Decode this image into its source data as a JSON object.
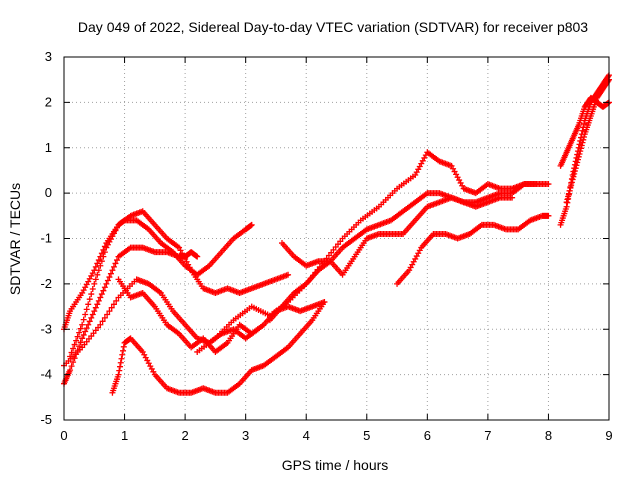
{
  "chart_data": {
    "type": "scatter",
    "title": "Day 049 of 2022, Sidereal Day-to-day VTEC variation (SDTVAR) for receiver p803",
    "xlabel": "GPS time / hours",
    "ylabel": "SDTVAR / TECUs",
    "xlim": [
      0,
      9
    ],
    "ylim": [
      -5,
      3
    ],
    "xticks": [
      "0",
      "1",
      "2",
      "3",
      "4",
      "5",
      "6",
      "7",
      "8",
      "9"
    ],
    "yticks": [
      "-5",
      "-4",
      "-3",
      "-2",
      "-1",
      "0",
      "1",
      "2",
      "3"
    ],
    "grid": true,
    "marker": "+",
    "color": "#ff0000",
    "series": [
      {
        "x": [
          0.0,
          0.3,
          0.6,
          0.9,
          1.2,
          1.4,
          1.6,
          1.8,
          2.0,
          2.2,
          2.4,
          2.6,
          2.8,
          3.0,
          3.2
        ],
        "y": [
          -3.8,
          -3.4,
          -2.9,
          -2.3,
          -1.9,
          -2.0,
          -2.2,
          -2.6,
          -2.9,
          -3.2,
          -3.3,
          -3.1,
          -3.0,
          -3.2,
          -3.0
        ]
      },
      {
        "x": [
          0.0,
          0.1,
          0.3,
          0.5,
          0.7,
          0.9,
          1.1,
          1.3,
          1.5,
          1.7,
          1.9,
          2.0,
          2.1,
          2.2
        ],
        "y": [
          -4.2,
          -3.9,
          -3.2,
          -2.6,
          -2.0,
          -1.4,
          -1.2,
          -1.2,
          -1.3,
          -1.3,
          -1.4,
          -1.4,
          -1.3,
          -1.4
        ]
      },
      {
        "x": [
          0.0,
          0.1,
          0.3,
          0.5,
          0.7,
          0.9,
          1.0,
          1.2,
          1.4,
          1.6,
          1.8,
          2.0,
          2.2,
          2.4,
          2.6,
          2.8,
          3.0,
          3.1
        ],
        "y": [
          -3.0,
          -2.6,
          -2.2,
          -1.7,
          -1.1,
          -0.7,
          -0.6,
          -0.6,
          -0.8,
          -1.1,
          -1.3,
          -1.6,
          -1.8,
          -1.6,
          -1.3,
          -1.0,
          -0.8,
          -0.7
        ]
      },
      {
        "x": [
          0.1,
          0.3,
          0.5,
          0.7,
          0.9,
          1.1,
          1.3,
          1.5,
          1.7,
          1.9,
          2.1,
          2.3,
          2.5,
          2.7,
          2.9,
          3.1,
          3.3,
          3.5,
          3.7
        ],
        "y": [
          -3.6,
          -2.9,
          -2.0,
          -1.2,
          -0.7,
          -0.5,
          -0.4,
          -0.7,
          -1.0,
          -1.2,
          -1.7,
          -2.1,
          -2.2,
          -2.1,
          -2.2,
          -2.1,
          -2.0,
          -1.9,
          -1.8
        ]
      },
      {
        "x": [
          0.8,
          0.9,
          1.0,
          1.1,
          1.3,
          1.5,
          1.7,
          1.9,
          2.1,
          2.3,
          2.5,
          2.7,
          2.9,
          3.1,
          3.3,
          3.5,
          3.7,
          3.9,
          4.1,
          4.3
        ],
        "y": [
          -4.4,
          -4.0,
          -3.3,
          -3.2,
          -3.5,
          -4.0,
          -4.3,
          -4.4,
          -4.4,
          -4.3,
          -4.4,
          -4.4,
          -4.2,
          -3.9,
          -3.8,
          -3.6,
          -3.4,
          -3.1,
          -2.8,
          -2.4
        ]
      },
      {
        "x": [
          0.9,
          1.1,
          1.3,
          1.5,
          1.7,
          1.9,
          2.1,
          2.3,
          2.5,
          2.7,
          2.9,
          3.1,
          3.3,
          3.5,
          3.7,
          3.9,
          4.1,
          4.3
        ],
        "y": [
          -1.9,
          -2.3,
          -2.2,
          -2.5,
          -2.9,
          -3.1,
          -3.4,
          -3.2,
          -3.5,
          -3.3,
          -2.9,
          -3.1,
          -2.9,
          -2.6,
          -2.5,
          -2.6,
          -2.5,
          -2.4
        ]
      },
      {
        "x": [
          2.2,
          2.5,
          2.8,
          3.1,
          3.4,
          3.7,
          4.0,
          4.3,
          4.6,
          4.9,
          5.2,
          5.5,
          5.8,
          6.0,
          6.2,
          6.4,
          6.6,
          6.8,
          7.0,
          7.2,
          7.4,
          7.6,
          7.8,
          8.0
        ],
        "y": [
          -3.5,
          -3.2,
          -2.8,
          -2.5,
          -2.7,
          -2.4,
          -2.0,
          -1.5,
          -1.0,
          -0.6,
          -0.3,
          0.1,
          0.4,
          0.9,
          0.7,
          0.6,
          0.1,
          0.0,
          0.2,
          0.1,
          0.1,
          0.2,
          0.2,
          0.2
        ]
      },
      {
        "x": [
          3.6,
          3.8,
          4.0,
          4.2,
          4.4,
          4.6,
          4.8,
          5.0,
          5.2,
          5.4,
          5.6,
          5.8,
          6.0,
          6.2,
          6.4,
          6.6,
          6.8,
          7.0,
          7.2,
          7.4,
          7.6,
          7.8
        ],
        "y": [
          -1.1,
          -1.4,
          -1.6,
          -1.5,
          -1.5,
          -1.8,
          -1.4,
          -1.0,
          -0.9,
          -0.9,
          -0.9,
          -0.6,
          -0.3,
          -0.2,
          -0.1,
          -0.2,
          -0.2,
          -0.1,
          0.0,
          0.0,
          0.2,
          0.2
        ]
      },
      {
        "x": [
          3.4,
          3.6,
          3.8,
          4.0,
          4.2,
          4.4,
          4.6,
          4.8,
          5.0,
          5.2,
          5.4,
          5.6,
          5.8,
          6.0,
          6.2,
          6.4,
          6.6,
          6.8,
          7.0,
          7.2,
          7.4
        ],
        "y": [
          -2.8,
          -2.5,
          -2.2,
          -2.0,
          -1.7,
          -1.5,
          -1.2,
          -1.0,
          -0.8,
          -0.7,
          -0.6,
          -0.4,
          -0.2,
          0.0,
          0.0,
          -0.1,
          -0.2,
          -0.3,
          -0.2,
          -0.1,
          -0.1
        ]
      },
      {
        "x": [
          5.5,
          5.7,
          5.9,
          6.1,
          6.3,
          6.5,
          6.7,
          6.9,
          7.1,
          7.3,
          7.5,
          7.7,
          7.9,
          8.0
        ],
        "y": [
          -2.0,
          -1.7,
          -1.2,
          -0.9,
          -0.9,
          -1.0,
          -0.9,
          -0.7,
          -0.7,
          -0.8,
          -0.8,
          -0.6,
          -0.5,
          -0.5
        ]
      },
      {
        "x": [
          8.2,
          8.3,
          8.4,
          8.5,
          8.6,
          8.7,
          8.8,
          8.9,
          9.0
        ],
        "y": [
          -0.7,
          -0.3,
          0.4,
          1.0,
          1.6,
          2.0,
          2.2,
          2.4,
          2.6
        ]
      },
      {
        "x": [
          8.2,
          8.3,
          8.4,
          8.5,
          8.6,
          8.7,
          8.8,
          8.9,
          9.0
        ],
        "y": [
          0.6,
          0.9,
          1.2,
          1.5,
          1.9,
          2.1,
          2.0,
          1.9,
          2.0
        ]
      },
      {
        "x": [
          8.3,
          8.4,
          8.5,
          8.6,
          8.7,
          8.8,
          8.9,
          9.0
        ],
        "y": [
          -0.2,
          0.3,
          0.8,
          1.3,
          1.7,
          2.1,
          2.3,
          2.5
        ]
      }
    ]
  }
}
